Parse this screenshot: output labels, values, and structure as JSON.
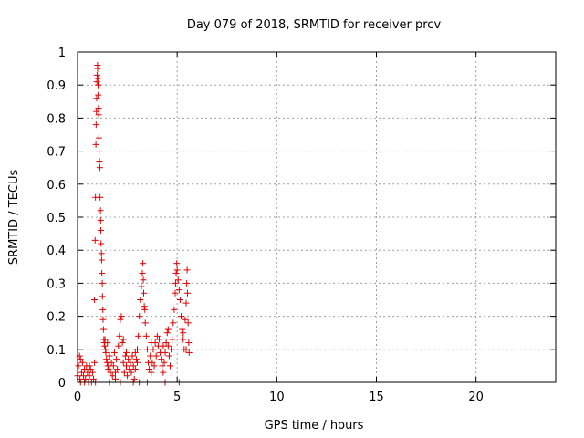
{
  "chart_data": {
    "type": "scatter",
    "title": "Day 079 of 2018, SRMTID for receiver prcv",
    "xlabel": "GPS time / hours",
    "ylabel": "SRMTID / TECUs",
    "xlim": [
      0,
      24
    ],
    "ylim": [
      0,
      1
    ],
    "xticks": [
      0,
      5,
      10,
      15,
      20
    ],
    "yticks": [
      0,
      0.1,
      0.2,
      0.3,
      0.4,
      0.5,
      0.6,
      0.7,
      0.8,
      0.9,
      1
    ],
    "xtick_labels": [
      "0",
      "5",
      "10",
      "15",
      "20"
    ],
    "ytick_labels": [
      "0",
      "0.1",
      "0.2",
      "0.3",
      "0.4",
      "0.5",
      "0.6",
      "0.7",
      "0.8",
      "0.9",
      "1"
    ],
    "grid": true,
    "marker": "+",
    "color": "#e00000",
    "series": [
      {
        "name": "SRMTID",
        "points": [
          [
            0.0,
            0.02
          ],
          [
            0.05,
            0.05
          ],
          [
            0.1,
            0.08
          ],
          [
            0.12,
            0.01
          ],
          [
            0.15,
            0.0
          ],
          [
            0.2,
            0.03
          ],
          [
            0.25,
            0.06
          ],
          [
            0.3,
            0.02
          ],
          [
            0.35,
            0.04
          ],
          [
            0.4,
            0.01
          ],
          [
            0.45,
            0.05
          ],
          [
            0.5,
            0.03
          ],
          [
            0.55,
            0.0
          ],
          [
            0.6,
            0.02
          ],
          [
            0.65,
            0.04
          ],
          [
            0.7,
            0.0
          ],
          [
            0.75,
            0.03
          ],
          [
            0.8,
            0.01
          ],
          [
            0.85,
            0.06
          ],
          [
            0.9,
            0.0
          ],
          [
            0.85,
            0.25
          ],
          [
            0.88,
            0.43
          ],
          [
            0.9,
            0.56
          ],
          [
            0.92,
            0.72
          ],
          [
            0.93,
            0.78
          ],
          [
            0.95,
            0.82
          ],
          [
            0.96,
            0.86
          ],
          [
            0.97,
            0.91
          ],
          [
            0.98,
            0.93
          ],
          [
            1.0,
            0.96
          ],
          [
            1.01,
            0.95
          ],
          [
            1.02,
            0.92
          ],
          [
            1.03,
            0.9
          ],
          [
            1.04,
            0.87
          ],
          [
            1.05,
            0.83
          ],
          [
            1.06,
            0.81
          ],
          [
            1.07,
            0.74
          ],
          [
            1.08,
            0.7
          ],
          [
            1.1,
            0.67
          ],
          [
            1.12,
            0.65
          ],
          [
            1.13,
            0.56
          ],
          [
            1.15,
            0.52
          ],
          [
            1.16,
            0.49
          ],
          [
            1.17,
            0.46
          ],
          [
            1.18,
            0.42
          ],
          [
            1.2,
            0.39
          ],
          [
            1.21,
            0.37
          ],
          [
            1.22,
            0.33
          ],
          [
            1.24,
            0.3
          ],
          [
            1.25,
            0.26
          ],
          [
            1.27,
            0.22
          ],
          [
            1.28,
            0.19
          ],
          [
            1.3,
            0.16
          ],
          [
            1.32,
            0.13
          ],
          [
            1.34,
            0.12
          ],
          [
            1.36,
            0.11
          ],
          [
            1.38,
            0.13
          ],
          [
            1.4,
            0.1
          ],
          [
            1.42,
            0.09
          ],
          [
            1.45,
            0.07
          ],
          [
            1.48,
            0.06
          ],
          [
            1.5,
            0.12
          ],
          [
            1.52,
            0.05
          ],
          [
            1.55,
            0.04
          ],
          [
            1.6,
            0.08
          ],
          [
            1.65,
            0.03
          ],
          [
            1.7,
            0.06
          ],
          [
            1.75,
            0.02
          ],
          [
            1.8,
            0.05
          ],
          [
            1.85,
            0.09
          ],
          [
            1.9,
            0.03
          ],
          [
            1.95,
            0.07
          ],
          [
            2.0,
            0.04
          ],
          [
            2.05,
            0.11
          ],
          [
            2.1,
            0.14
          ],
          [
            2.15,
            0.19
          ],
          [
            2.2,
            0.2
          ],
          [
            2.25,
            0.12
          ],
          [
            2.3,
            0.06
          ],
          [
            2.35,
            0.03
          ],
          [
            2.4,
            0.08
          ],
          [
            2.45,
            0.05
          ],
          [
            2.5,
            0.02
          ],
          [
            2.55,
            0.07
          ],
          [
            2.6,
            0.04
          ],
          [
            2.65,
            0.06
          ],
          [
            2.7,
            0.03
          ],
          [
            2.75,
            0.08
          ],
          [
            2.8,
            0.05
          ],
          [
            2.85,
            0.01
          ],
          [
            2.9,
            0.04
          ],
          [
            2.95,
            0.07
          ],
          [
            3.0,
            0.1
          ],
          [
            3.05,
            0.14
          ],
          [
            3.1,
            0.2
          ],
          [
            3.15,
            0.25
          ],
          [
            3.2,
            0.29
          ],
          [
            3.25,
            0.33
          ],
          [
            3.28,
            0.36
          ],
          [
            3.3,
            0.31
          ],
          [
            3.32,
            0.27
          ],
          [
            3.35,
            0.23
          ],
          [
            3.38,
            0.22
          ],
          [
            3.4,
            0.18
          ],
          [
            3.45,
            0.14
          ],
          [
            3.5,
            0.1
          ],
          [
            3.55,
            0.06
          ],
          [
            3.6,
            0.04
          ],
          [
            3.65,
            0.08
          ],
          [
            3.7,
            0.03
          ],
          [
            3.75,
            0.06
          ],
          [
            3.8,
            0.1
          ],
          [
            3.85,
            0.05
          ],
          [
            3.9,
            0.12
          ],
          [
            3.95,
            0.08
          ],
          [
            4.0,
            0.14
          ],
          [
            4.05,
            0.11
          ],
          [
            4.1,
            0.13
          ],
          [
            4.15,
            0.09
          ],
          [
            4.2,
            0.07
          ],
          [
            4.25,
            0.05
          ],
          [
            4.3,
            0.03
          ],
          [
            4.35,
            0.06
          ],
          [
            4.4,
            0.09
          ],
          [
            4.45,
            0.12
          ],
          [
            4.5,
            0.15
          ],
          [
            4.55,
            0.11
          ],
          [
            4.6,
            0.08
          ],
          [
            4.65,
            0.05
          ],
          [
            4.7,
            0.1
          ],
          [
            4.75,
            0.13
          ],
          [
            4.8,
            0.18
          ],
          [
            4.85,
            0.22
          ],
          [
            4.9,
            0.27
          ],
          [
            4.92,
            0.3
          ],
          [
            4.95,
            0.33
          ],
          [
            4.98,
            0.36
          ],
          [
            5.0,
            0.34
          ],
          [
            5.05,
            0.31
          ],
          [
            5.1,
            0.28
          ],
          [
            5.15,
            0.25
          ],
          [
            5.2,
            0.2
          ],
          [
            5.25,
            0.16
          ],
          [
            5.3,
            0.13
          ],
          [
            5.35,
            0.1
          ],
          [
            5.4,
            0.19
          ],
          [
            5.45,
            0.24
          ],
          [
            5.48,
            0.3
          ],
          [
            5.5,
            0.34
          ],
          [
            5.52,
            0.27
          ],
          [
            5.55,
            0.18
          ],
          [
            5.58,
            0.12
          ],
          [
            5.6,
            0.09
          ],
          [
            0.15,
            0.07
          ],
          [
            0.35,
            0.0
          ],
          [
            0.6,
            0.05
          ],
          [
            1.6,
            0.0
          ],
          [
            1.9,
            0.01
          ],
          [
            2.15,
            0.0
          ],
          [
            2.8,
            0.0
          ],
          [
            3.1,
            0.0
          ],
          [
            3.5,
            0.0
          ],
          [
            4.4,
            0.0
          ],
          [
            5.1,
            0.0
          ],
          [
            2.3,
            0.13
          ],
          [
            2.45,
            0.09
          ],
          [
            3.7,
            0.12
          ],
          [
            4.3,
            0.11
          ],
          [
            4.55,
            0.16
          ],
          [
            5.3,
            0.15
          ],
          [
            5.45,
            0.1
          ],
          [
            3.0,
            0.06
          ],
          [
            2.9,
            0.09
          ]
        ]
      }
    ]
  }
}
